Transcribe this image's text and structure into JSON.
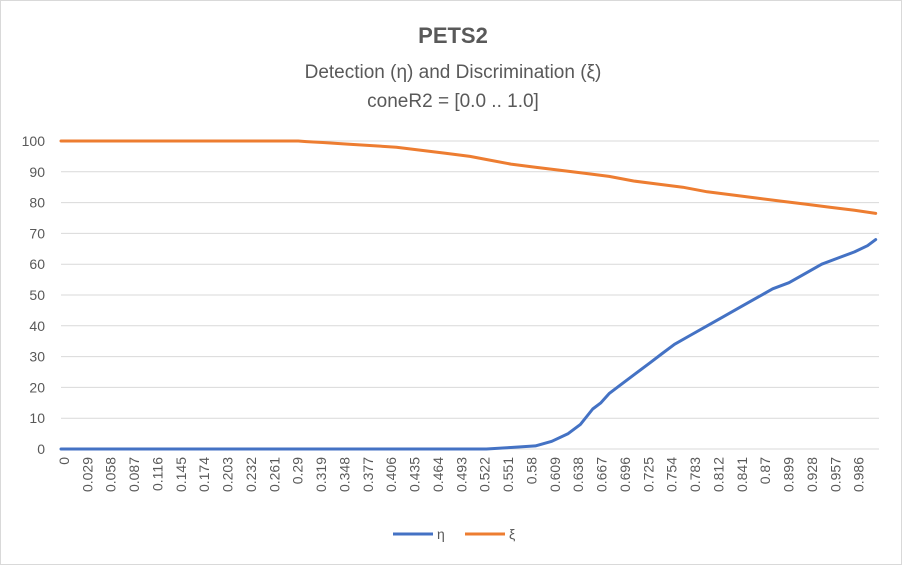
{
  "chart_data": {
    "type": "line",
    "title": "PETS2",
    "subtitle": [
      "Detection (η) and Discrimination (ξ)",
      "coneR2 = [0.0 .. 1.0]"
    ],
    "xlabel": "",
    "ylabel": "",
    "ylim": [
      0,
      100
    ],
    "yticks": [
      0,
      10,
      20,
      30,
      40,
      50,
      60,
      70,
      80,
      90,
      100
    ],
    "xlim": [
      0,
      1.0
    ],
    "xtick_labels": [
      "0",
      "0.029",
      "0.058",
      "0.087",
      "0.116",
      "0.145",
      "0.174",
      "0.203",
      "0.232",
      "0.261",
      "0.29",
      "0.319",
      "0.348",
      "0.377",
      "0.406",
      "0.435",
      "0.464",
      "0.493",
      "0.522",
      "0.551",
      "0.58",
      "0.609",
      "0.638",
      "0.667",
      "0.696",
      "0.725",
      "0.754",
      "0.783",
      "0.812",
      "0.841",
      "0.87",
      "0.899",
      "0.928",
      "0.957",
      "0.986"
    ],
    "grid": true,
    "legend": "bottom-center",
    "series": [
      {
        "name": "η",
        "color": "#4472c4",
        "x": [
          0,
          0.52,
          0.55,
          0.58,
          0.6,
          0.62,
          0.635,
          0.65,
          0.66,
          0.67,
          0.685,
          0.7,
          0.72,
          0.735,
          0.75,
          0.77,
          0.79,
          0.81,
          0.83,
          0.85,
          0.87,
          0.89,
          0.91,
          0.93,
          0.95,
          0.97,
          0.986,
          0.996
        ],
        "values": [
          0,
          0,
          0.5,
          1,
          2.5,
          5,
          8,
          13,
          15,
          18,
          21,
          24,
          28,
          31,
          34,
          37,
          40,
          43,
          46,
          49,
          52,
          54,
          57,
          60,
          62,
          64,
          66,
          68
        ]
      },
      {
        "name": "ξ",
        "color": "#ed7d31",
        "x": [
          0,
          0.29,
          0.3,
          0.32,
          0.35,
          0.38,
          0.41,
          0.44,
          0.47,
          0.5,
          0.52,
          0.55,
          0.58,
          0.61,
          0.64,
          0.67,
          0.7,
          0.73,
          0.76,
          0.79,
          0.82,
          0.85,
          0.88,
          0.91,
          0.94,
          0.97,
          0.996
        ],
        "values": [
          100,
          100,
          99.8,
          99.5,
          99,
          98.5,
          98,
          97,
          96,
          95,
          94,
          92.5,
          91.5,
          90.5,
          89.5,
          88.5,
          87,
          86,
          85,
          83.5,
          82.5,
          81.5,
          80.5,
          79.5,
          78.5,
          77.5,
          76.5
        ]
      }
    ]
  }
}
